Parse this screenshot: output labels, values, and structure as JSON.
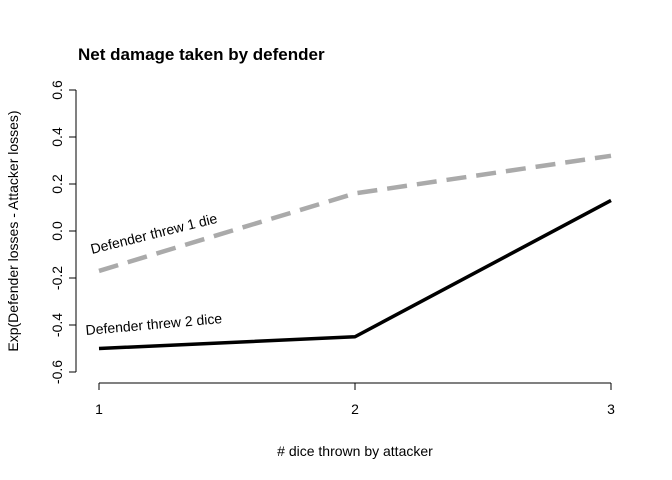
{
  "chart_data": {
    "type": "line",
    "title": "Net damage taken by defender",
    "xlabel": "# dice thrown by attacker",
    "ylabel": "Exp(Defender losses - Attacker losses)",
    "x": [
      1,
      2,
      3
    ],
    "xlim": [
      1,
      3
    ],
    "ylim": [
      -0.6,
      0.6
    ],
    "xticks": [
      "1",
      "2",
      "3"
    ],
    "yticks": [
      "-0.6",
      "-0.4",
      "-0.2",
      "0.0",
      "0.2",
      "0.4",
      "0.6"
    ],
    "grid": false,
    "series": [
      {
        "name": "Defender threw 1 die",
        "values": [
          -0.17,
          0.16,
          0.32
        ],
        "color": "#aaaaaa",
        "style": "dashed"
      },
      {
        "name": "Defender threw 2 dice",
        "values": [
          -0.5,
          -0.45,
          0.13
        ],
        "color": "#000000",
        "style": "solid"
      }
    ]
  }
}
